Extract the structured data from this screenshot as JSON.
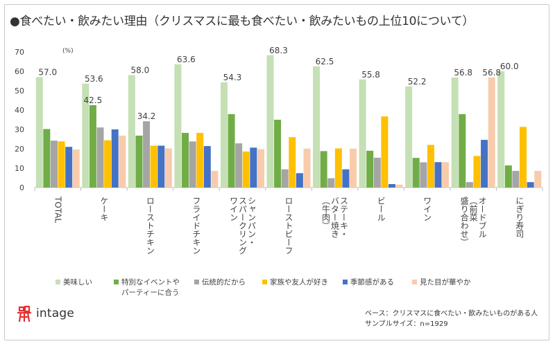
{
  "title": "●食べたい・飲みたい理由（クリスマスに最も食べたい・飲みたいもの上位10について）",
  "brand": "intage",
  "note_base": "ベース：クリスマスに食べたい・飲みたいものがある人",
  "note_sample": "サンプルサイズ：n=1929",
  "colors": {
    "s1": "#c5e0b4",
    "s2": "#70ad47",
    "s3": "#a5a5a5",
    "s4": "#ffc000",
    "s5": "#4472c4",
    "s6": "#f8cbad",
    "logo": "#e52e2e"
  },
  "chart_data": {
    "type": "bar",
    "unit": "(%)",
    "ylim": [
      0,
      70
    ],
    "yticks": [
      0,
      10,
      20,
      30,
      40,
      50,
      60,
      70
    ],
    "grid": false,
    "legend_position": "bottom",
    "categories": [
      "TOTAL",
      "ケーキ",
      "ローストチキン",
      "フライドチキン",
      "シャンパン・スパークリングワイン",
      "ローストビーフ",
      "ステーキ・バター焼き（牛肉）",
      "ビール",
      "ワイン",
      "オードブル（前菜盛り合わせ）",
      "にぎり寿司"
    ],
    "category_lines": [
      [
        "TOTAL"
      ],
      [
        "ケーキ"
      ],
      [
        "ローストチキン"
      ],
      [
        "フライドチキン"
      ],
      [
        "シャンパン・",
        "スパークリング",
        "ワイン"
      ],
      [
        "ローストビーフ"
      ],
      [
        "ステーキ・",
        "バター焼き",
        "（牛肉）"
      ],
      [
        "ビール"
      ],
      [
        "ワイン"
      ],
      [
        "オードブル",
        "（前菜",
        "盛り合わせ）"
      ],
      [
        "にぎり寿司"
      ]
    ],
    "series": [
      {
        "name": "美味しい",
        "color": "#c5e0b4",
        "values": [
          57.0,
          53.6,
          58.0,
          63.6,
          54.3,
          68.3,
          62.5,
          55.8,
          52.2,
          56.8,
          60.0
        ]
      },
      {
        "name": "特別なイベントやパーティーに合う",
        "legend_lines": [
          "特別なイベントや",
          "パーティーに合う"
        ],
        "color": "#70ad47",
        "values": [
          30.2,
          42.5,
          26.8,
          28.2,
          37.9,
          35.0,
          18.8,
          19.0,
          15.3,
          37.9,
          11.4
        ]
      },
      {
        "name": "伝統的だから",
        "color": "#a5a5a5",
        "values": [
          24.2,
          31.0,
          34.2,
          23.8,
          22.8,
          9.4,
          4.8,
          15.4,
          13.0,
          2.8,
          8.6
        ]
      },
      {
        "name": "家族や友人が好き",
        "color": "#ffc000",
        "values": [
          23.8,
          24.4,
          21.6,
          28.2,
          18.6,
          26.0,
          20.2,
          36.7,
          22.0,
          16.3,
          31.3
        ]
      },
      {
        "name": "季節感がある",
        "color": "#4472c4",
        "values": [
          21.0,
          30.0,
          21.6,
          21.4,
          20.6,
          7.4,
          9.4,
          1.8,
          13.1,
          24.6,
          2.8
        ]
      },
      {
        "name": "見た目が華やか",
        "color": "#f8cbad",
        "values": [
          19.6,
          26.8,
          20.2,
          8.6,
          19.8,
          20.1,
          20.1,
          1.5,
          13.1,
          56.8,
          8.6
        ]
      }
    ],
    "data_labels": [
      {
        "category": 0,
        "series": 0,
        "text": "57.0"
      },
      {
        "category": 1,
        "series": 0,
        "text": "53.6"
      },
      {
        "category": 1,
        "series": 1,
        "text": "42.5"
      },
      {
        "category": 2,
        "series": 0,
        "text": "58.0"
      },
      {
        "category": 2,
        "series": 2,
        "text": "34.2"
      },
      {
        "category": 3,
        "series": 0,
        "text": "63.6"
      },
      {
        "category": 4,
        "series": 0,
        "text": "54.3"
      },
      {
        "category": 5,
        "series": 0,
        "text": "68.3"
      },
      {
        "category": 6,
        "series": 0,
        "text": "62.5"
      },
      {
        "category": 7,
        "series": 0,
        "text": "55.8"
      },
      {
        "category": 8,
        "series": 0,
        "text": "52.2"
      },
      {
        "category": 9,
        "series": 0,
        "text": "56.8"
      },
      {
        "category": 9,
        "series": 5,
        "text": "56.8"
      },
      {
        "category": 10,
        "series": 0,
        "text": "60.0"
      }
    ]
  }
}
